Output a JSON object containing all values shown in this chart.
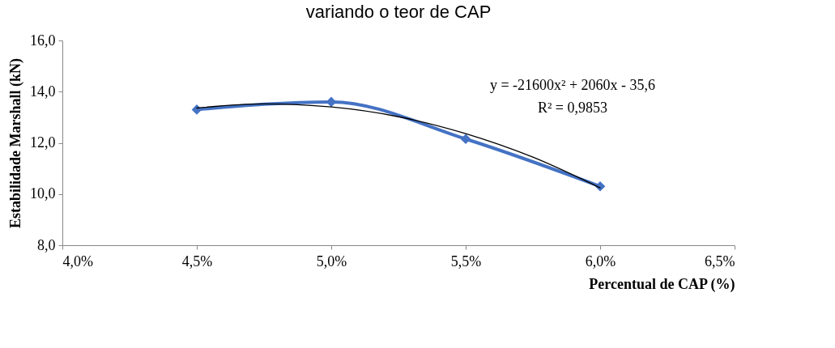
{
  "chart_data": {
    "type": "line",
    "title": "variando o teor de CAP",
    "xlabel": "Percentual de CAP (%)",
    "ylabel": "Estabilidade Marshall (kN)",
    "x": [
      0.045,
      0.05,
      0.055,
      0.06
    ],
    "series": [
      {
        "color": "#4472c4",
        "values": [
          13.3,
          13.6,
          12.15,
          10.3
        ],
        "marker": "diamond"
      },
      {
        "type": "line",
        "color": "#000000",
        "marker": "none",
        "x": [
          0.045,
          0.0475,
          0.05,
          0.0525,
          0.055,
          0.0575,
          0.06
        ],
        "values": [
          13.36,
          13.52,
          13.4,
          13.02,
          12.36,
          11.44,
          10.24
        ]
      }
    ],
    "xlim": [
      0.04,
      0.065
    ],
    "xticks": [
      {
        "value": 0.04,
        "label": "4,0%"
      },
      {
        "value": 0.045,
        "label": "4,5%"
      },
      {
        "value": 0.05,
        "label": "5,0%"
      },
      {
        "value": 0.055,
        "label": "5,5%"
      },
      {
        "value": 0.06,
        "label": "6,0%"
      },
      {
        "value": 0.065,
        "label": "6,5%"
      }
    ],
    "ylim": [
      8,
      16
    ],
    "yticks": [
      {
        "value": 8,
        "label": "8,0"
      },
      {
        "value": 10,
        "label": "10,0"
      },
      {
        "value": 12,
        "label": "12,0"
      },
      {
        "value": 14,
        "label": "14,0"
      },
      {
        "value": 16,
        "label": "16,0"
      }
    ],
    "grid": false,
    "annotations": [
      "y = -21600x² + 2060x - 35,6",
      "R² = 0,9853"
    ]
  }
}
